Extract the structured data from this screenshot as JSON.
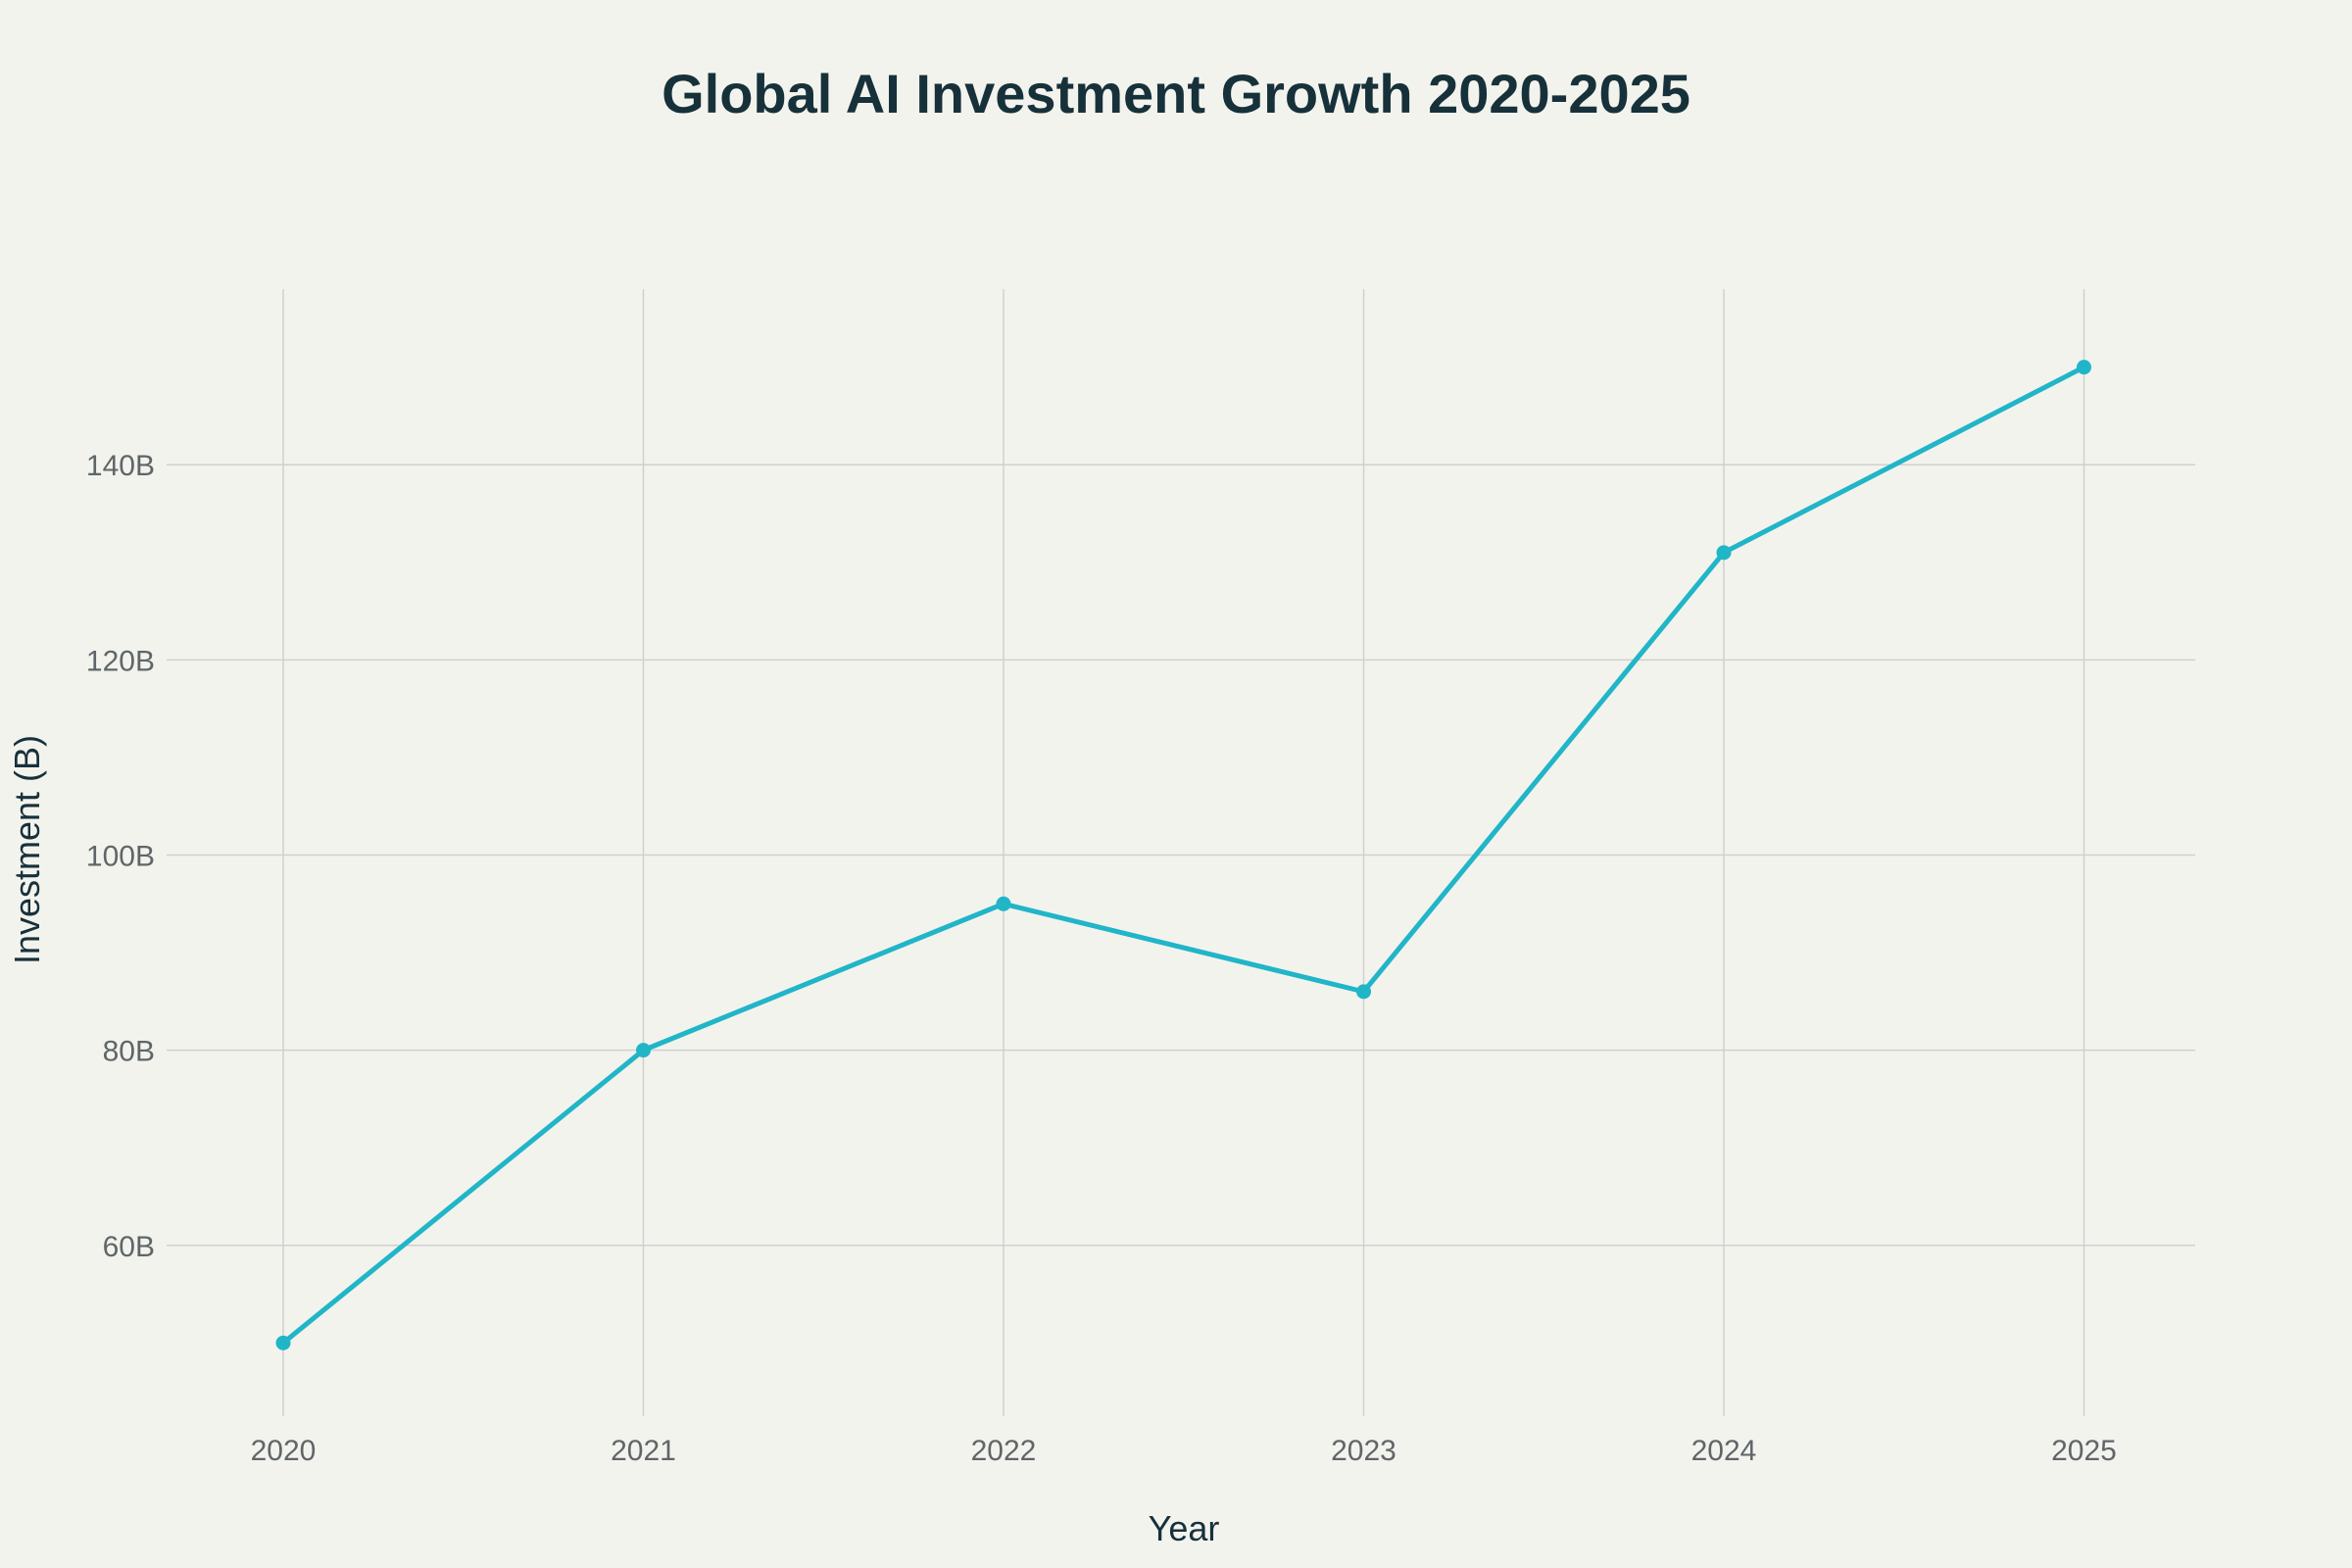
{
  "chart_data": {
    "type": "line",
    "title": "Global AI Investment Growth 2020-2025",
    "xlabel": "Year",
    "ylabel": "Investment (B)",
    "categories": [
      "2020",
      "2021",
      "2022",
      "2023",
      "2024",
      "2025"
    ],
    "series": [
      {
        "values": [
          50,
          80,
          95,
          86,
          131,
          150
        ],
        "color": "#21b5c8"
      }
    ],
    "y_ticks": [
      60,
      80,
      100,
      120,
      140
    ],
    "y_tick_labels": [
      "60B",
      "80B",
      "100B",
      "120B",
      "140B"
    ],
    "ylim": [
      42.5,
      158
    ],
    "grid": true,
    "background": "#f3f3ee"
  }
}
